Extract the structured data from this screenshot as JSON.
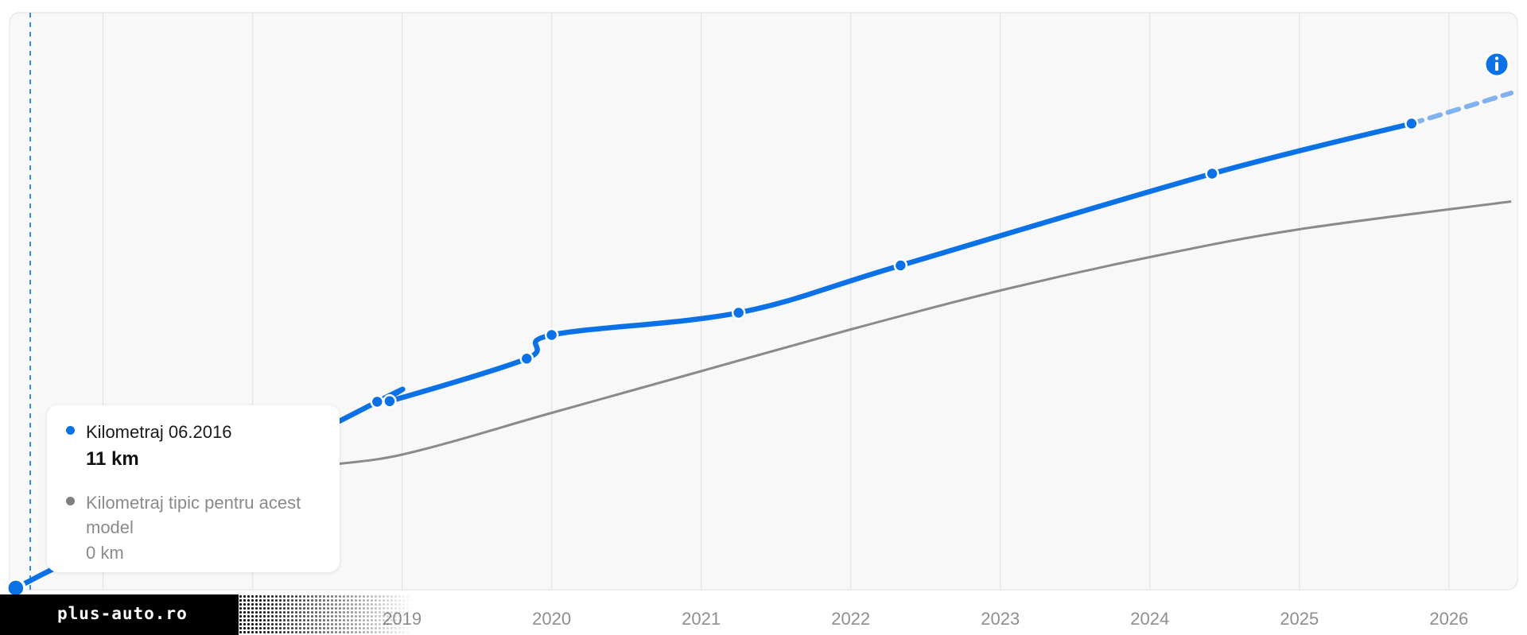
{
  "chart_data": {
    "type": "line",
    "xlabel": "",
    "ylabel": "",
    "x_ticks": [
      "2019",
      "2020",
      "2021",
      "2022",
      "2023",
      "2024",
      "2025",
      "2026"
    ],
    "xlim": [
      "2016-05",
      "2026-06"
    ],
    "grid": true,
    "series": [
      {
        "name": "Kilometraj",
        "color": "#0a72e6",
        "points": [
          {
            "date": "2016-06",
            "km": 11
          },
          {
            "date": "2018-11",
            "km": 67000
          },
          {
            "date": "2018-12",
            "km": 67200
          },
          {
            "date": "2019-11",
            "km": 82500
          },
          {
            "date": "2020-01",
            "km": 91000
          },
          {
            "date": "2021-04",
            "km": 99000
          },
          {
            "date": "2022-05",
            "km": 116000
          },
          {
            "date": "2024-06",
            "km": 149000
          },
          {
            "date": "2025-10",
            "km": 167000
          }
        ],
        "projection": [
          {
            "date": "2025-10",
            "km": 167000
          },
          {
            "date": "2026-06",
            "km": 178000
          }
        ]
      },
      {
        "name": "Kilometraj tipic pentru acest model",
        "color": "#8a8a8a",
        "points": [
          {
            "date": "2016-06",
            "km": 0
          },
          {
            "date": "2018-01",
            "km": 38000
          },
          {
            "date": "2019-01",
            "km": 48000
          },
          {
            "date": "2020-01",
            "km": 63000
          },
          {
            "date": "2021-01",
            "km": 78000
          },
          {
            "date": "2022-01",
            "km": 93000
          },
          {
            "date": "2023-01",
            "km": 107000
          },
          {
            "date": "2024-01",
            "km": 119000
          },
          {
            "date": "2025-01",
            "km": 129000
          },
          {
            "date": "2026-06",
            "km": 139000
          }
        ]
      }
    ]
  },
  "tooltip": {
    "series1_label": "Kilometraj 06.2016",
    "series1_value": "11 km",
    "series2_label": "Kilometraj tipic pentru acest model",
    "series2_value": "0 km",
    "series1_color": "#0a72e6",
    "series2_color": "#808080"
  },
  "info_icon": "info-icon",
  "brand": {
    "text": "plus-auto.ro"
  }
}
